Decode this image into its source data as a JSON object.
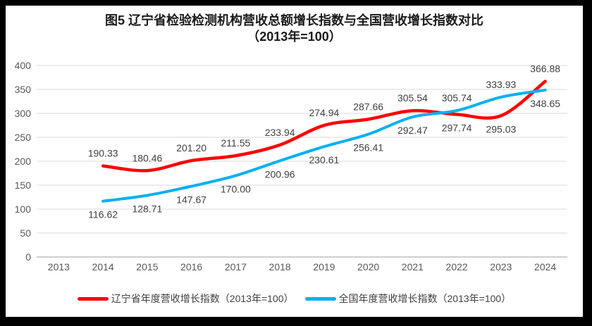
{
  "title": {
    "line1": "图5  辽宁省检验检测机构营收总额增长指数与全国营收增长指数对比",
    "line2": "（2013年=100）"
  },
  "chart_data": {
    "type": "line",
    "categories": [
      "2013",
      "2014",
      "2015",
      "2016",
      "2017",
      "2018",
      "2019",
      "2020",
      "2021",
      "2022",
      "2023",
      "2024"
    ],
    "series": [
      {
        "name": "辽宁省年度营收增长指数（2013年=100）",
        "color": "#FF0000",
        "values": [
          null,
          190.33,
          180.46,
          201.2,
          211.55,
          233.94,
          274.94,
          287.66,
          305.54,
          297.74,
          295.03,
          366.88
        ]
      },
      {
        "name": "全国年度营收增长指数（2013年=100）",
        "color": "#00B0F0",
        "values": [
          null,
          116.62,
          128.71,
          147.67,
          170.0,
          200.96,
          230.61,
          256.41,
          292.47,
          305.74,
          333.93,
          348.65
        ]
      }
    ],
    "ylim": [
      0,
      400
    ],
    "yticks": [
      0,
      50,
      100,
      150,
      200,
      250,
      300,
      350,
      400
    ],
    "grid": true,
    "smooth": true,
    "data_labels": true,
    "legend_position": "bottom"
  },
  "colors": {
    "frame": "#000000",
    "background": "#FFFFFF",
    "gridline": "#D9D9D9",
    "axis_line": "#BFBFBF",
    "tick_label": "#595959",
    "data_label": "#404040",
    "title": "#1A1A1A"
  }
}
